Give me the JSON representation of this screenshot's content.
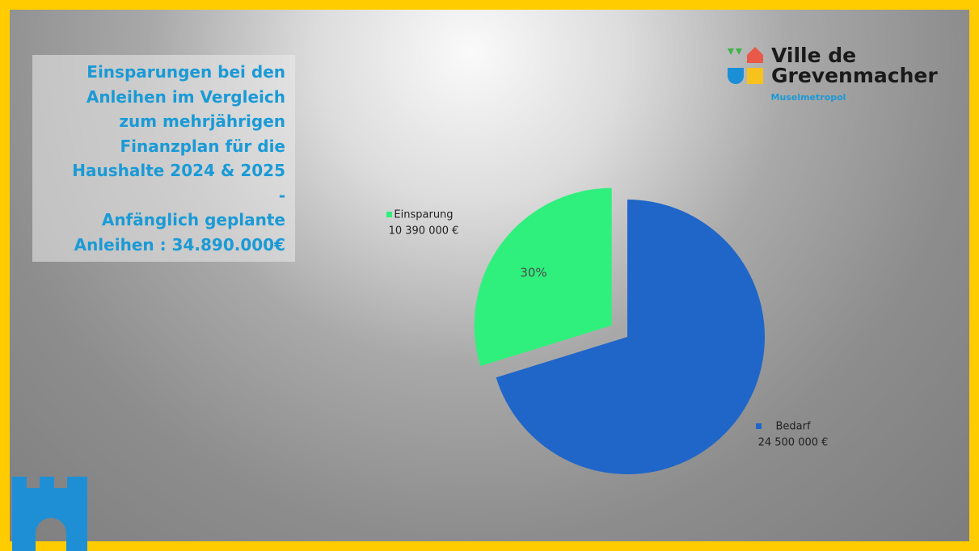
{
  "chart_data": {
    "type": "pie",
    "title": [
      "Einsparungen bei den",
      "Anleihen im Vergleich",
      "zum mehrjährigen",
      "Finanzplan für die",
      "Haushalte 2024 & 2025",
      "-",
      "Anfänglich geplante",
      "Anleihen : 34.890.000€"
    ],
    "categories": [
      "Einsparung",
      "Bedarf"
    ],
    "values": [
      10390000,
      24500000
    ],
    "value_labels": [
      "10 390 000 €",
      "24 500 000 €"
    ],
    "percent_labels": [
      "30%",
      null
    ],
    "colors": [
      "#2ff07c",
      "#1f66c8"
    ],
    "exploded": [
      true,
      false
    ]
  },
  "logo": {
    "name_lines": [
      "Ville de",
      "Grevenmacher"
    ],
    "tagline": "Muselmetropol"
  }
}
